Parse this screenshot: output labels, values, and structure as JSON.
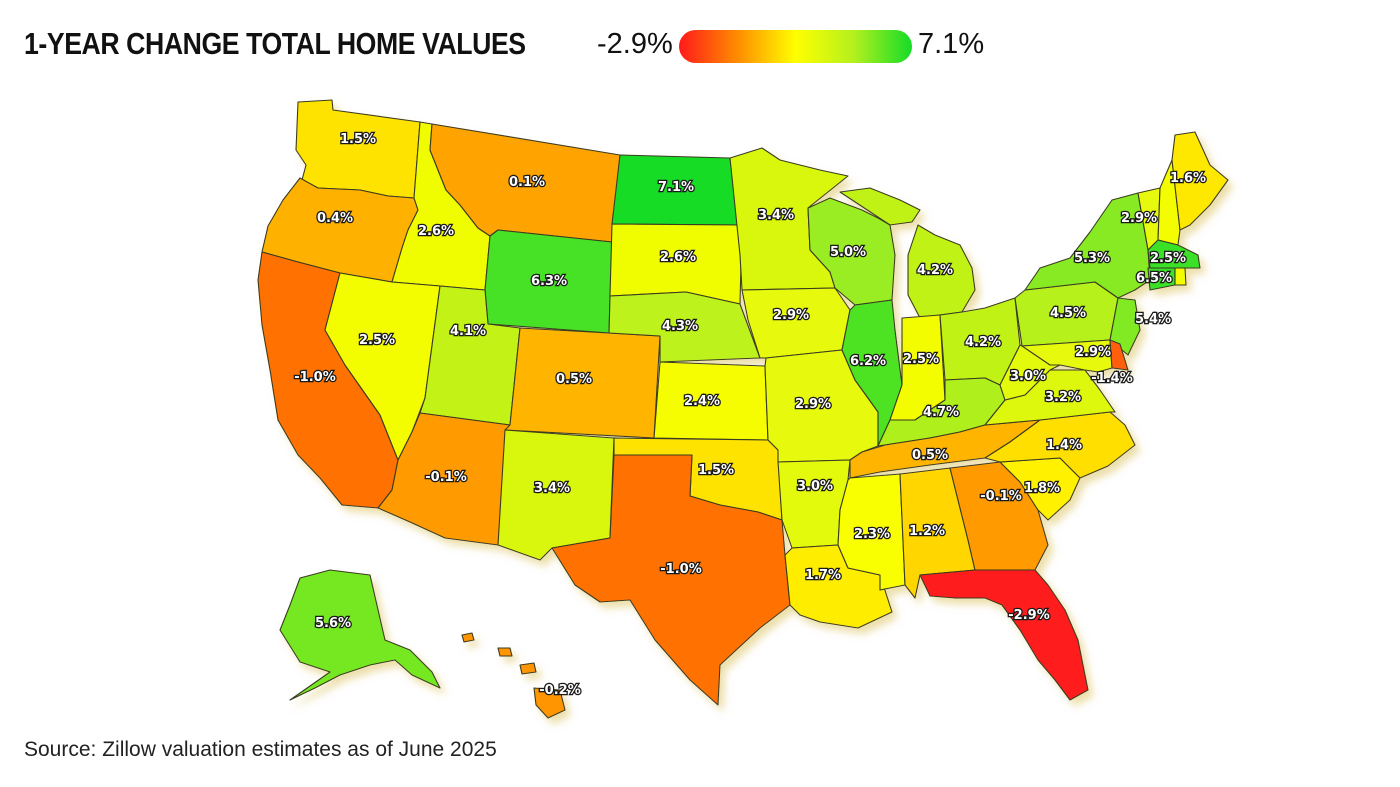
{
  "title": "1-YEAR CHANGE TOTAL HOME VALUES",
  "legend": {
    "min_label": "-2.9%",
    "max_label": "7.1%",
    "min_value": -2.9,
    "max_value": 7.1,
    "gradient": [
      "#ff1a1a",
      "#ff8c00",
      "#ffff00",
      "#b4f01e",
      "#14dc28"
    ]
  },
  "source": "Source: Zillow valuation estimates as of June 2025",
  "states": [
    {
      "id": "WA",
      "value": 1.5,
      "label": "1.5%"
    },
    {
      "id": "OR",
      "value": 0.4,
      "label": "0.4%"
    },
    {
      "id": "CA",
      "value": -1.0,
      "label": "-1.0%"
    },
    {
      "id": "ID",
      "value": 2.6,
      "label": "2.6%"
    },
    {
      "id": "NV",
      "value": 2.5,
      "label": "2.5%"
    },
    {
      "id": "MT",
      "value": 0.1,
      "label": "0.1%"
    },
    {
      "id": "WY",
      "value": 6.3,
      "label": "6.3%"
    },
    {
      "id": "UT",
      "value": 4.1,
      "label": "4.1%"
    },
    {
      "id": "AZ",
      "value": -0.1,
      "label": "-0.1%"
    },
    {
      "id": "CO",
      "value": 0.5,
      "label": "0.5%"
    },
    {
      "id": "NM",
      "value": 3.4,
      "label": "3.4%"
    },
    {
      "id": "ND",
      "value": 7.1,
      "label": "7.1%"
    },
    {
      "id": "SD",
      "value": 2.6,
      "label": "2.6%"
    },
    {
      "id": "NE",
      "value": 4.3,
      "label": "4.3%"
    },
    {
      "id": "KS",
      "value": 2.4,
      "label": "2.4%"
    },
    {
      "id": "OK",
      "value": 1.5,
      "label": "1.5%"
    },
    {
      "id": "TX",
      "value": -1.0,
      "label": "-1.0%"
    },
    {
      "id": "MN",
      "value": 3.4,
      "label": "3.4%"
    },
    {
      "id": "IA",
      "value": 2.9,
      "label": "2.9%"
    },
    {
      "id": "MO",
      "value": 2.9,
      "label": "2.9%"
    },
    {
      "id": "AR",
      "value": 3.0,
      "label": "3.0%"
    },
    {
      "id": "LA",
      "value": 1.7,
      "label": "1.7%"
    },
    {
      "id": "WI",
      "value": 5.0,
      "label": "5.0%"
    },
    {
      "id": "IL",
      "value": 6.2,
      "label": "6.2%"
    },
    {
      "id": "MI",
      "value": 4.2,
      "label": "4.2%"
    },
    {
      "id": "IN",
      "value": 2.5,
      "label": "2.5%"
    },
    {
      "id": "OH",
      "value": 4.2,
      "label": "4.2%"
    },
    {
      "id": "KY",
      "value": 4.7,
      "label": "4.7%"
    },
    {
      "id": "TN",
      "value": 0.5,
      "label": "0.5%"
    },
    {
      "id": "MS",
      "value": 2.3,
      "label": "2.3%"
    },
    {
      "id": "AL",
      "value": 1.2,
      "label": "1.2%"
    },
    {
      "id": "GA",
      "value": -0.1,
      "label": "-0.1%"
    },
    {
      "id": "FL",
      "value": -2.9,
      "label": "-2.9%"
    },
    {
      "id": "SC",
      "value": 1.8,
      "label": "1.8%"
    },
    {
      "id": "NC",
      "value": 1.4,
      "label": "1.4%"
    },
    {
      "id": "VA",
      "value": 3.2,
      "label": "3.2%"
    },
    {
      "id": "WV",
      "value": 3.0,
      "label": "3.0%"
    },
    {
      "id": "PA",
      "value": 4.5,
      "label": "4.5%"
    },
    {
      "id": "NY",
      "value": 5.3,
      "label": "5.3%"
    },
    {
      "id": "NJ",
      "value": 5.4,
      "label": "5.4%"
    },
    {
      "id": "MD",
      "value": 2.9,
      "label": "2.9%"
    },
    {
      "id": "DE",
      "value": -1.4,
      "label": "-1.4%"
    },
    {
      "id": "VT",
      "value": 2.9,
      "label": "2.9%"
    },
    {
      "id": "NH",
      "value": 2.5,
      "label": "2.5%"
    },
    {
      "id": "MA",
      "value": 6.5,
      "label": "6.5%"
    },
    {
      "id": "CT",
      "value": 6.5,
      "label": ""
    },
    {
      "id": "RI",
      "value": 2.5,
      "label": ""
    },
    {
      "id": "ME",
      "value": 1.6,
      "label": "1.6%"
    },
    {
      "id": "AK",
      "value": 5.6,
      "label": "5.6%"
    },
    {
      "id": "HI",
      "value": -0.2,
      "label": "-0.2%"
    }
  ]
}
